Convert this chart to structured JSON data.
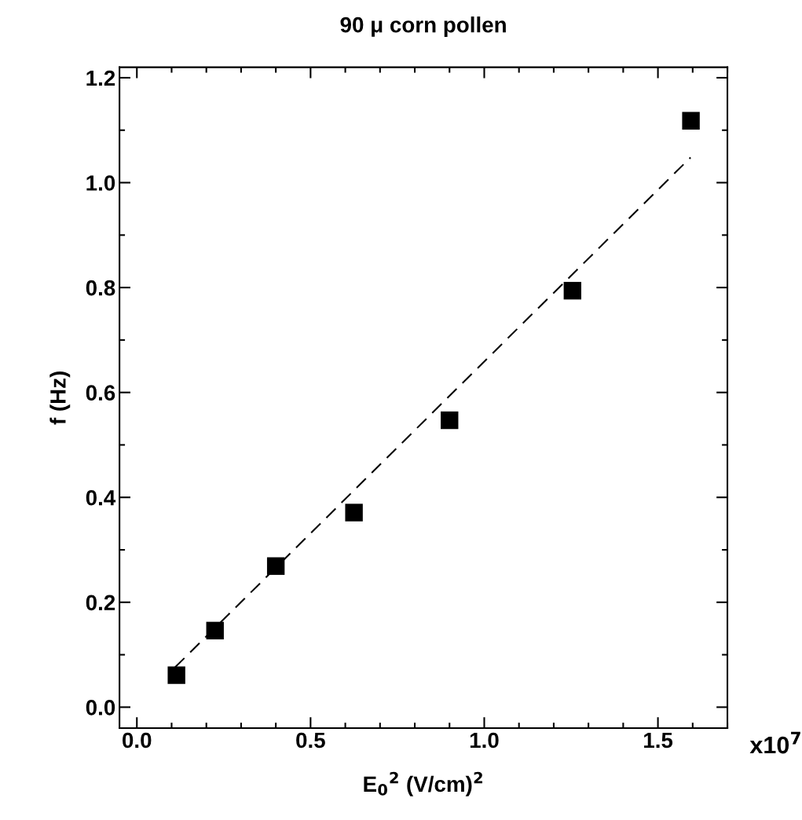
{
  "chart_data": {
    "type": "scatter",
    "title": "90 μ corn pollen",
    "xlabel": "E$_{0}$$^{2}$ (V/cm)$^{2}$",
    "ylabel": "f (Hz)",
    "annotations": [
      "x10$^{7}$"
    ],
    "series": [
      {
        "color": "#000000",
        "marker": "square",
        "x": [
          0.114,
          0.225,
          0.4,
          0.625,
          0.9,
          1.254,
          1.595
        ],
        "values": [
          0.061,
          0.146,
          0.269,
          0.371,
          0.547,
          0.794,
          1.118
        ]
      },
      {
        "type": "line",
        "color": "#000000",
        "marker": "none",
        "line_style": "dashed",
        "x": [
          0.11,
          1.594
        ],
        "values": [
          0.076,
          1.048
        ]
      }
    ],
    "xlim": [
      -0.05,
      1.7
    ],
    "ylim": [
      -0.04,
      1.22
    ],
    "xticks": [
      {
        "value": 0.0,
        "label": "0.0"
      },
      {
        "value": 0.5,
        "label": "0.5"
      },
      {
        "value": 1.0,
        "label": "1.0"
      },
      {
        "value": 1.5,
        "label": "1.5"
      }
    ],
    "yticks": [
      {
        "value": 0.0,
        "label": "0.0"
      },
      {
        "value": 0.2,
        "label": "0.2"
      },
      {
        "value": 0.4,
        "label": "0.4"
      },
      {
        "value": 0.6,
        "label": "0.6"
      },
      {
        "value": 0.8,
        "label": "0.8"
      },
      {
        "value": 1.0,
        "label": "1.0"
      },
      {
        "value": 1.2,
        "label": "1.2"
      }
    ],
    "grid": false,
    "legend": false
  }
}
